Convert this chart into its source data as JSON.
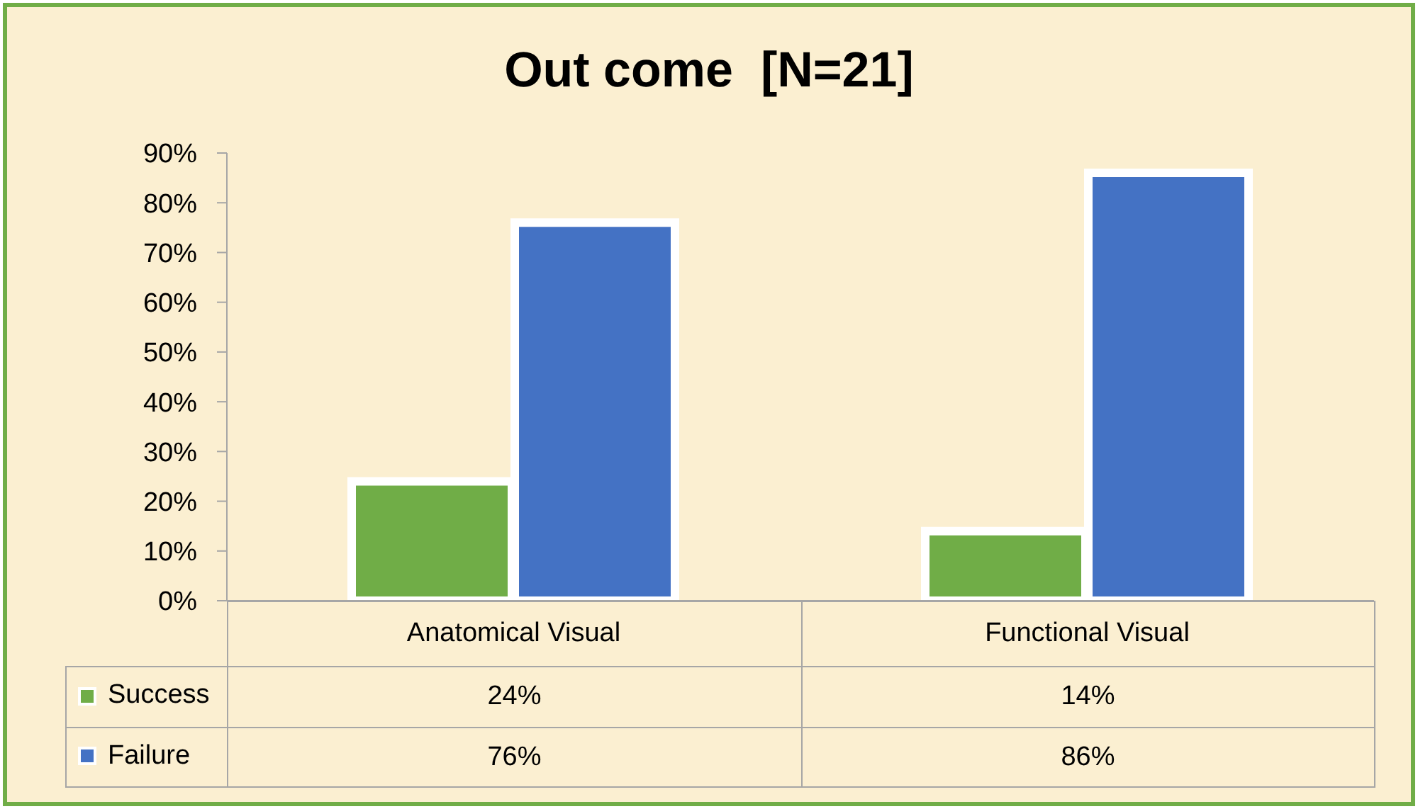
{
  "chart_data": {
    "type": "bar",
    "title": "Out come  [N=21]",
    "categories": [
      "Anatomical Visual",
      "Functional Visual"
    ],
    "series": [
      {
        "name": "Success",
        "color": "#70ad47",
        "values": [
          24,
          14
        ],
        "value_labels": [
          "24%",
          "14%"
        ]
      },
      {
        "name": "Failure",
        "color": "#4472c4",
        "values": [
          76,
          86
        ],
        "value_labels": [
          "76%",
          "86%"
        ]
      }
    ],
    "ylim": [
      0,
      90
    ],
    "yticks": [
      {
        "value": 0,
        "label": "0%"
      },
      {
        "value": 10,
        "label": "10%"
      },
      {
        "value": 20,
        "label": "20%"
      },
      {
        "value": 30,
        "label": "30%"
      },
      {
        "value": 40,
        "label": "40%"
      },
      {
        "value": 50,
        "label": "50%"
      },
      {
        "value": 60,
        "label": "60%"
      },
      {
        "value": 70,
        "label": "70%"
      },
      {
        "value": 80,
        "label": "80%"
      },
      {
        "value": 90,
        "label": "90%"
      }
    ],
    "legend": "bottom left"
  }
}
